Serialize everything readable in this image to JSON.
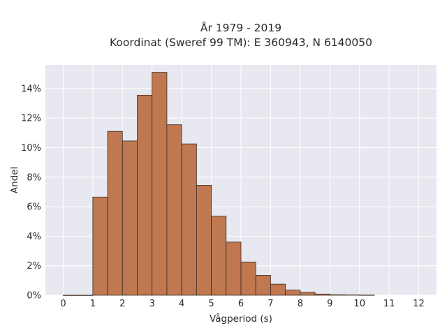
{
  "chart_data": {
    "type": "bar",
    "title_lines": [
      "År 1979 - 2019",
      "Koordinat (Sweref 99 TM): E 360943, N 6140050"
    ],
    "xlabel": "Vågperiod (s)",
    "ylabel": "Andel",
    "bin_width": 0.5,
    "bins": [
      {
        "start": 0.0,
        "value": 0.0
      },
      {
        "start": 0.5,
        "value": 0.0
      },
      {
        "start": 1.0,
        "value": 6.65
      },
      {
        "start": 1.5,
        "value": 11.1
      },
      {
        "start": 2.0,
        "value": 10.45
      },
      {
        "start": 2.5,
        "value": 13.55
      },
      {
        "start": 3.0,
        "value": 15.1
      },
      {
        "start": 3.5,
        "value": 11.55
      },
      {
        "start": 4.0,
        "value": 10.25
      },
      {
        "start": 4.5,
        "value": 7.45
      },
      {
        "start": 5.0,
        "value": 5.35
      },
      {
        "start": 5.5,
        "value": 3.6
      },
      {
        "start": 6.0,
        "value": 2.25
      },
      {
        "start": 6.5,
        "value": 1.35
      },
      {
        "start": 7.0,
        "value": 0.75
      },
      {
        "start": 7.5,
        "value": 0.35
      },
      {
        "start": 8.0,
        "value": 0.2
      },
      {
        "start": 8.5,
        "value": 0.08
      },
      {
        "start": 9.0,
        "value": 0.03
      },
      {
        "start": 9.5,
        "value": 0.02
      },
      {
        "start": 10.0,
        "value": 0.01
      }
    ],
    "xlim": [
      -0.6,
      12.6
    ],
    "ylim": [
      0,
      15.6
    ],
    "x_ticks": [
      0,
      1,
      2,
      3,
      4,
      5,
      6,
      7,
      8,
      9,
      10,
      11,
      12
    ],
    "x_tick_labels": [
      "0",
      "1",
      "2",
      "3",
      "4",
      "5",
      "6",
      "7",
      "8",
      "9",
      "10",
      "11",
      "12"
    ],
    "y_ticks": [
      0,
      2,
      4,
      6,
      8,
      10,
      12,
      14
    ],
    "y_tick_labels": [
      "0%",
      "2%",
      "4%",
      "6%",
      "8%",
      "10%",
      "12%",
      "14%"
    ],
    "grid": true,
    "colors": {
      "bar_fill": "#c07850",
      "bar_edge": "#3b2a22",
      "plot_background": "#e8e8f0",
      "grid": "#ffffff"
    }
  }
}
